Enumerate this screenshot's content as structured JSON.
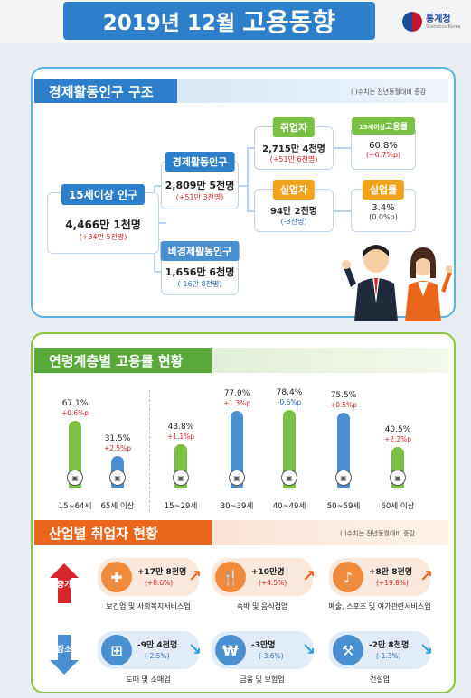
{
  "header": {
    "title_main": "2019년 12월",
    "title_accent": "고용동향",
    "logo_text": "통계청",
    "logo_sub": "Statistics Korea"
  },
  "structure": {
    "heading": "경제활동인구 구조",
    "note": "( )수치는 전년동월대비 증감",
    "pop15": {
      "label": "15세이상 인구",
      "value": "4,466만 1천명",
      "change": "(+34만 5천명)"
    },
    "active": {
      "label": "경제활동인구",
      "value": "2,809만 5천명",
      "change": "(+51만 3천명)"
    },
    "inactive": {
      "label": "비경제활동인구",
      "value": "1,656만 6천명",
      "change": "(-16만 8천명)"
    },
    "employed": {
      "label": "취업자",
      "value": "2,715만 4천명",
      "change": "(+51만 6천명)"
    },
    "unemployed": {
      "label": "실업자",
      "value": "94만 2천명",
      "change": "(-3천명)"
    },
    "emp_rate": {
      "label_small": "15세이상",
      "label": "고용률",
      "value": "60.8%",
      "change": "(+0.7%p)"
    },
    "unemp_rate": {
      "label": "실업률",
      "value": "3.4%",
      "change": "(0.0%p)"
    }
  },
  "age": {
    "heading": "연령계층별 고용률 현황",
    "groups": [
      {
        "label": "15~64세",
        "value": "67.1%",
        "change": "+0.6%p",
        "color": "green",
        "rate": 67.1,
        "dir": "up"
      },
      {
        "label": "65세 이상",
        "value": "31.5%",
        "change": "+2.5%p",
        "color": "blue",
        "rate": 31.5,
        "dir": "up"
      },
      {
        "label": "15~29세",
        "value": "43.8%",
        "change": "+1.1%p",
        "color": "green",
        "rate": 43.8,
        "dir": "up"
      },
      {
        "label": "30~39세",
        "value": "77.0%",
        "change": "+1.3%p",
        "color": "blue",
        "rate": 77.0,
        "dir": "up"
      },
      {
        "label": "40~49세",
        "value": "78.4%",
        "change": "-0.6%p",
        "color": "green",
        "rate": 78.4,
        "dir": "down"
      },
      {
        "label": "50~59세",
        "value": "75.5%",
        "change": "+0.5%p",
        "color": "blue",
        "rate": 75.5,
        "dir": "up"
      },
      {
        "label": "60세 이상",
        "value": "40.5%",
        "change": "+2.2%p",
        "color": "green",
        "rate": 40.5,
        "dir": "up"
      }
    ]
  },
  "industry": {
    "heading": "산업별 취업자 현황",
    "note": "( )수치는 전년동월대비 증감",
    "increase_label": "증가",
    "decrease_label": "감소",
    "increase": [
      {
        "value": "+17만 8천명",
        "change": "(+8.6%)",
        "name": "보건업 및 사회복지서비스업",
        "icon": "first-aid-icon"
      },
      {
        "value": "+10만명",
        "change": "(+4.5%)",
        "name": "숙박 및 음식점업",
        "icon": "dining-icon"
      },
      {
        "value": "+8만 8천명",
        "change": "(+19.8%)",
        "name": "예술, 스포츠 및 여가관련서비스업",
        "icon": "arts-icon"
      }
    ],
    "decrease": [
      {
        "value": "-9만 4천명",
        "change": "(-2.5%)",
        "name": "도매 및 소매업",
        "icon": "shopping-basket-icon"
      },
      {
        "value": "-3만명",
        "change": "(-3.6%)",
        "name": "금융 및 보험업",
        "icon": "money-icon"
      },
      {
        "value": "-2만 8천명",
        "change": "(-1.3%)",
        "name": "건설업",
        "icon": "excavator-icon"
      }
    ]
  }
}
